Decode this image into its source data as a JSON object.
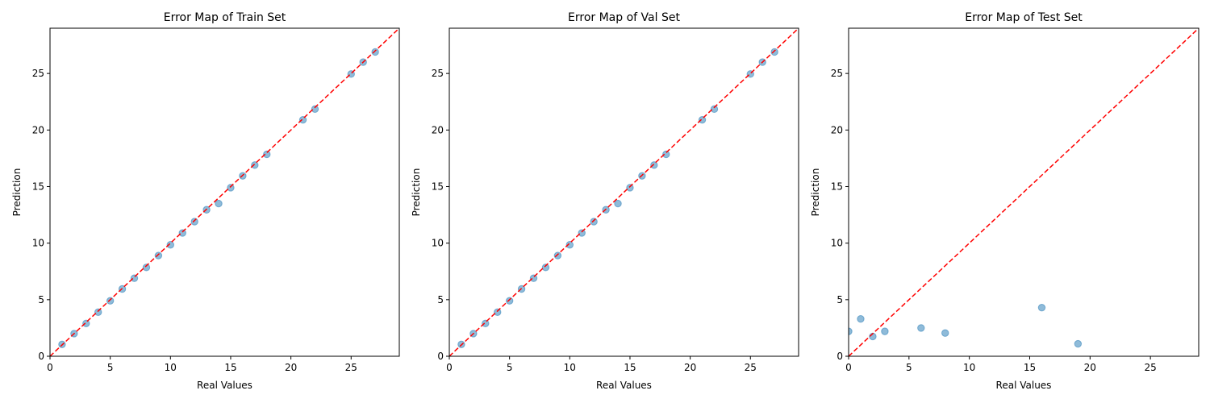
{
  "chart_data": [
    {
      "type": "scatter",
      "title": "Error Map of Train Set",
      "xlabel": "Real Values",
      "ylabel": "Prediction",
      "xlim": [
        0,
        29
      ],
      "ylim": [
        0,
        29
      ],
      "xticks": [
        0,
        5,
        10,
        15,
        20,
        25
      ],
      "yticks": [
        0,
        5,
        10,
        15,
        20,
        25
      ],
      "grid": false,
      "points": [
        [
          1,
          1.05
        ],
        [
          2,
          2
        ],
        [
          3,
          2.9
        ],
        [
          4,
          3.9
        ],
        [
          5,
          4.9
        ],
        [
          6,
          5.95
        ],
        [
          7,
          6.9
        ],
        [
          8,
          7.85
        ],
        [
          9,
          8.9
        ],
        [
          10,
          9.85
        ],
        [
          11,
          10.9
        ],
        [
          12,
          11.9
        ],
        [
          13,
          12.95
        ],
        [
          14,
          13.5
        ],
        [
          15,
          14.9
        ],
        [
          16,
          15.95
        ],
        [
          17,
          16.9
        ],
        [
          18,
          17.85
        ],
        [
          21,
          20.9
        ],
        [
          22,
          21.85
        ],
        [
          25,
          24.95
        ],
        [
          26,
          26
        ],
        [
          27,
          26.9
        ]
      ],
      "reference_line": {
        "from": [
          0,
          0
        ],
        "to": [
          29,
          29
        ],
        "style": "dashed"
      }
    },
    {
      "type": "scatter",
      "title": "Error Map of Val Set",
      "xlabel": "Real Values",
      "ylabel": "Prediction",
      "xlim": [
        0,
        29
      ],
      "ylim": [
        0,
        29
      ],
      "xticks": [
        0,
        5,
        10,
        15,
        20,
        25
      ],
      "yticks": [
        0,
        5,
        10,
        15,
        20,
        25
      ],
      "grid": false,
      "points": [
        [
          1,
          1.05
        ],
        [
          2,
          2
        ],
        [
          3,
          2.9
        ],
        [
          4,
          3.9
        ],
        [
          5,
          4.9
        ],
        [
          6,
          5.95
        ],
        [
          7,
          6.9
        ],
        [
          8,
          7.85
        ],
        [
          9,
          8.9
        ],
        [
          10,
          9.85
        ],
        [
          11,
          10.9
        ],
        [
          12,
          11.9
        ],
        [
          13,
          12.95
        ],
        [
          14,
          13.5
        ],
        [
          15,
          14.9
        ],
        [
          16,
          15.95
        ],
        [
          17,
          16.9
        ],
        [
          18,
          17.85
        ],
        [
          21,
          20.9
        ],
        [
          22,
          21.85
        ],
        [
          25,
          24.95
        ],
        [
          26,
          26
        ],
        [
          27,
          26.9
        ]
      ],
      "reference_line": {
        "from": [
          0,
          0
        ],
        "to": [
          29,
          29
        ],
        "style": "dashed"
      }
    },
    {
      "type": "scatter",
      "title": "Error Map of Test Set",
      "xlabel": "Real Values",
      "ylabel": "Prediction",
      "xlim": [
        0,
        29
      ],
      "ylim": [
        0,
        29
      ],
      "xticks": [
        0,
        5,
        10,
        15,
        20,
        25
      ],
      "yticks": [
        0,
        5,
        10,
        15,
        20,
        25
      ],
      "grid": false,
      "points": [
        [
          0,
          2.2
        ],
        [
          1,
          3.3
        ],
        [
          2,
          1.75
        ],
        [
          3,
          2.2
        ],
        [
          6,
          2.5
        ],
        [
          8,
          2.05
        ],
        [
          16,
          4.3
        ],
        [
          19,
          1.1
        ]
      ],
      "reference_line": {
        "from": [
          0,
          0
        ],
        "to": [
          29,
          29
        ],
        "style": "dashed"
      }
    }
  ],
  "colors": {
    "point_fill": "#1f77b4",
    "reference_line": "#ff0000",
    "axes": "#000000"
  }
}
